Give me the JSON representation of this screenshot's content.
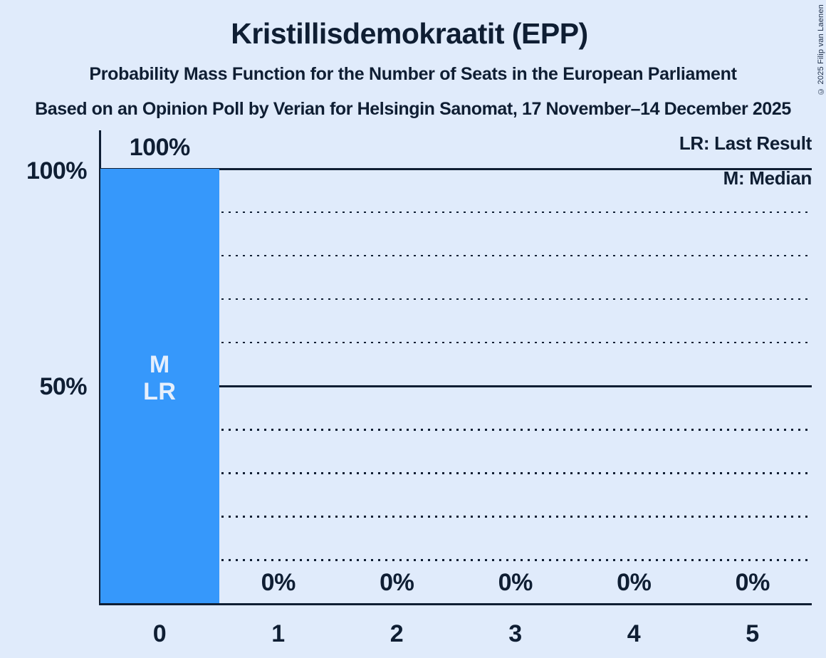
{
  "page": {
    "background_color": "#e0ebfb",
    "text_color": "#0f1e33",
    "copyright": "© 2025 Filip van Laenen"
  },
  "header": {
    "title": "Kristillisdemokraatit (EPP)",
    "subtitle": "Probability Mass Function for the Number of Seats in the European Parliament",
    "source_line": "Based on an Opinion Poll by Verian for Helsingin Sanomat, 17 November–14 December 2025"
  },
  "legend": {
    "entries": [
      "LR: Last Result",
      "M: Median"
    ],
    "position": "top-right"
  },
  "chart_data": {
    "type": "bar",
    "title": "Kristillisdemokraatit (EPP)",
    "subtitle": "Probability Mass Function for the Number of Seats in the European Parliament",
    "xlabel": "",
    "ylabel": "",
    "categories": [
      "0",
      "1",
      "2",
      "3",
      "4",
      "5"
    ],
    "values": [
      100,
      0,
      0,
      0,
      0,
      0
    ],
    "value_labels": [
      "100%",
      "0%",
      "0%",
      "0%",
      "0%",
      "0%"
    ],
    "annotations": {
      "0": [
        "M",
        "LR"
      ]
    },
    "median_seats": 0,
    "last_result_seats": 0,
    "ylim": [
      0,
      100
    ],
    "y_axis_labels": [
      {
        "value": 100,
        "label": "100%"
      },
      {
        "value": 50,
        "label": "50%"
      }
    ],
    "gridlines": [
      {
        "percent": 100,
        "style": "solid"
      },
      {
        "percent": 90,
        "style": "dotted"
      },
      {
        "percent": 80,
        "style": "dotted"
      },
      {
        "percent": 70,
        "style": "dotted"
      },
      {
        "percent": 60,
        "style": "dotted"
      },
      {
        "percent": 50,
        "style": "solid"
      },
      {
        "percent": 40,
        "style": "dotted"
      },
      {
        "percent": 30,
        "style": "dotted"
      },
      {
        "percent": 20,
        "style": "dotted"
      },
      {
        "percent": 10,
        "style": "dotted"
      }
    ],
    "grid": true,
    "legend_position": "top-right",
    "bar_color": "#3698fb",
    "bar_annotation_color": "#e6effc",
    "axis_color": "#0f1e33"
  }
}
